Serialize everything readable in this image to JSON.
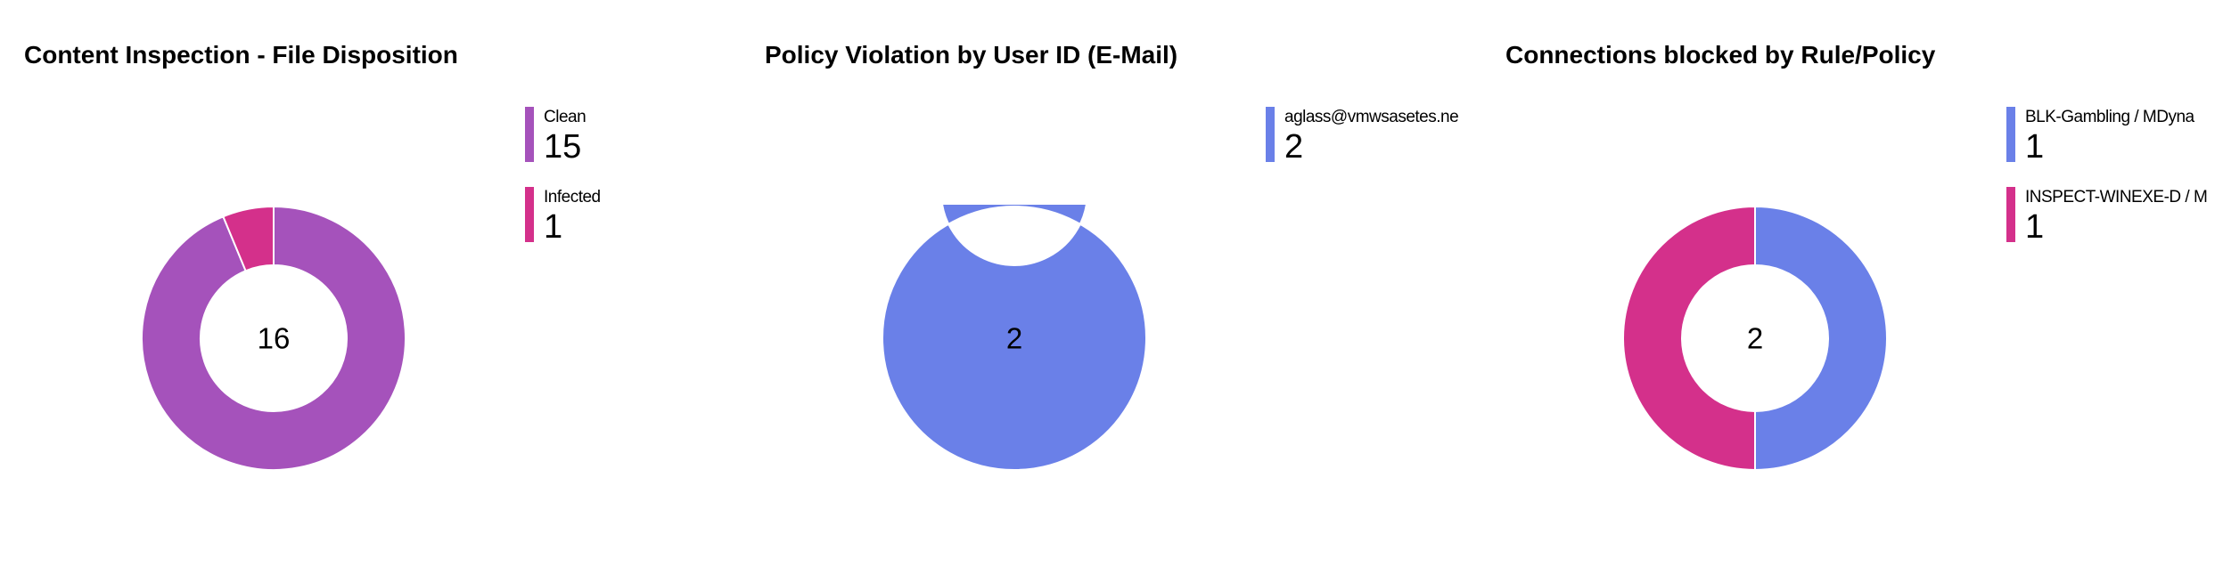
{
  "chart_data": [
    {
      "type": "pie",
      "title": "Content Inspection - File Disposition",
      "total": "16",
      "categories": [
        "Clean",
        "Infected"
      ],
      "values": [
        15,
        1
      ],
      "colors": [
        "#a552bb",
        "#d4308b"
      ],
      "legend": [
        {
          "label": "Clean",
          "value": "15",
          "color": "#a552bb"
        },
        {
          "label": "Infected",
          "value": "1",
          "color": "#d4308b"
        }
      ],
      "legend_position": "right",
      "hole": "donut"
    },
    {
      "type": "pie",
      "title": "Policy Violation by User ID (E-Mail)",
      "total": "2",
      "categories": [
        "aglass@vmwsasetes.ne"
      ],
      "values": [
        2
      ],
      "colors": [
        "#6a80e8"
      ],
      "legend": [
        {
          "label": "aglass@vmwsasetes.ne",
          "value": "2",
          "color": "#6a80e8"
        }
      ],
      "legend_position": "right",
      "hole": "donut"
    },
    {
      "type": "pie",
      "title": "Connections blocked by Rule/Policy",
      "total": "2",
      "categories": [
        "BLK-Gambling / MDyna",
        "INSPECT-WINEXE-D / M"
      ],
      "values": [
        1,
        1
      ],
      "colors": [
        "#6a80e8",
        "#d4308b"
      ],
      "legend": [
        {
          "label": "BLK-Gambling / MDyna",
          "value": "1",
          "color": "#6a80e8"
        },
        {
          "label": "INSPECT-WINEXE-D / M",
          "value": "1",
          "color": "#d4308b"
        }
      ],
      "legend_position": "right",
      "hole": "donut"
    }
  ]
}
